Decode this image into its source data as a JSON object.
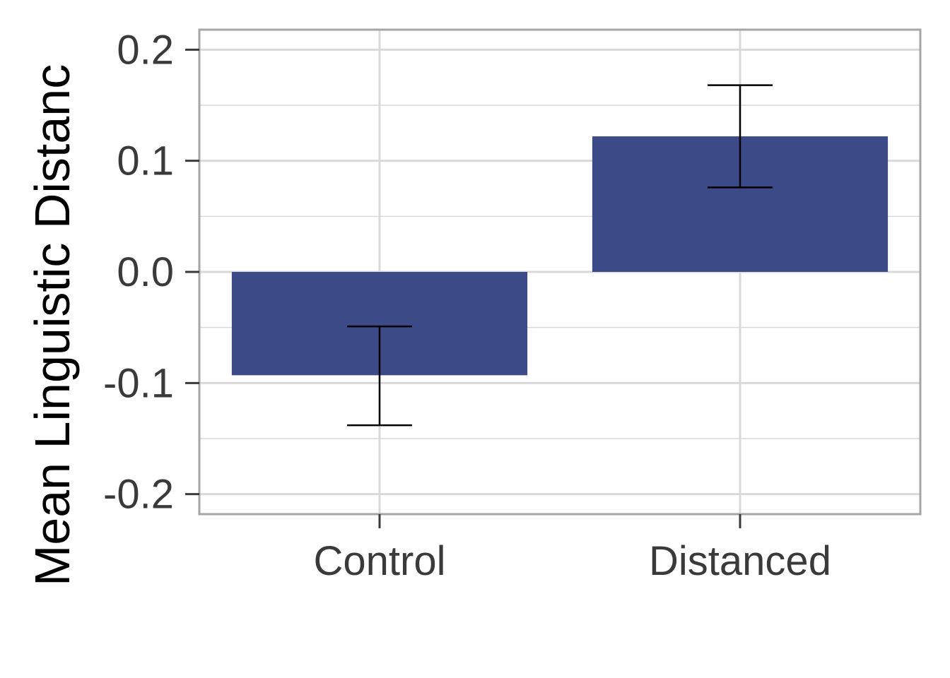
{
  "chart_data": {
    "type": "bar",
    "title": "",
    "xlabel": "",
    "ylabel": "Mean Linguistic Distanc",
    "categories": [
      "Control",
      "Distanced"
    ],
    "values": [
      -0.093,
      0.122
    ],
    "error_bars": {
      "lower": [
        -0.138,
        0.076
      ],
      "upper": [
        -0.049,
        0.168
      ]
    },
    "ylim": [
      -0.218,
      0.218
    ],
    "y_ticks": [
      -0.2,
      -0.1,
      0.0,
      0.1,
      0.2
    ],
    "y_tick_labels": [
      "-0.2",
      "-0.1",
      "0.0",
      "0.1",
      "0.2"
    ],
    "grid": true,
    "legend": "none",
    "bar_color": "#3c4a88",
    "grid_color": "#d9d9d9",
    "panel_border_color": "#a6a6a6"
  }
}
